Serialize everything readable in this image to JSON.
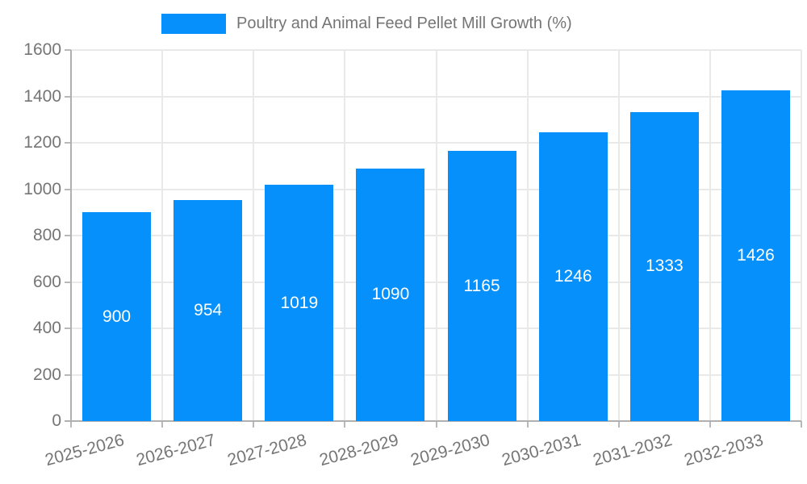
{
  "legend": {
    "label": "Poultry and Animal Feed Pellet Mill Growth (%)"
  },
  "chart_data": {
    "type": "bar",
    "title": "",
    "xlabel": "",
    "ylabel": "",
    "categories": [
      "2025-2026",
      "2026-2027",
      "2027-2028",
      "2028-2029",
      "2029-2030",
      "2030-2031",
      "2031-2032",
      "2032-2033"
    ],
    "series": [
      {
        "name": "Poultry and Animal Feed Pellet Mill Growth (%)",
        "values": [
          900,
          954,
          1019,
          1090,
          1165,
          1246,
          1333,
          1426
        ]
      }
    ],
    "value_labels_shown": true,
    "ylim": [
      0,
      1600
    ],
    "yticks": [
      0,
      200,
      400,
      600,
      800,
      1000,
      1200,
      1400,
      1600
    ],
    "grid": "horizontal and vertical light gridlines",
    "legend_position": "top-center",
    "x_label_rotation_deg": -15
  },
  "colors": {
    "bar": "#0590fb",
    "value_label": "#ffffff",
    "axis_line": "#b0b0b0",
    "grid_line": "#e9e9e9",
    "tick_text": "#757575",
    "background": "#ffffff"
  }
}
